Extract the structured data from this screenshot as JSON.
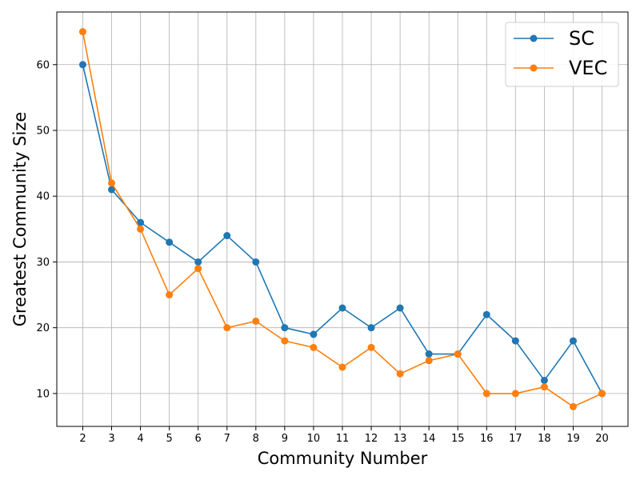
{
  "chart_data": {
    "type": "line",
    "title": "",
    "xlabel": "Community Number",
    "ylabel": "Greatest Community Size",
    "x": [
      2,
      3,
      4,
      5,
      6,
      7,
      8,
      9,
      10,
      11,
      12,
      13,
      14,
      15,
      16,
      17,
      18,
      19,
      20
    ],
    "x_ticks": [
      "2",
      "3",
      "4",
      "5",
      "6",
      "7",
      "8",
      "9",
      "10",
      "11",
      "12",
      "13",
      "14",
      "15",
      "16",
      "17",
      "18",
      "19",
      "20"
    ],
    "xlim": [
      1.1,
      20.9
    ],
    "ylim": [
      5,
      68
    ],
    "y_ticks": [
      10,
      20,
      30,
      40,
      50,
      60
    ],
    "grid": true,
    "legend_position": "top-right",
    "series": [
      {
        "name": "SC",
        "color": "#1f77b4",
        "values": [
          60,
          41,
          36,
          33,
          30,
          34,
          30,
          20,
          19,
          23,
          20,
          23,
          16,
          16,
          22,
          18,
          12,
          18,
          10
        ]
      },
      {
        "name": "VEC",
        "color": "#ff7f0e",
        "values": [
          65,
          42,
          35,
          25,
          29,
          20,
          21,
          18,
          17,
          14,
          17,
          13,
          15,
          16,
          10,
          10,
          11,
          8,
          10
        ]
      }
    ]
  }
}
